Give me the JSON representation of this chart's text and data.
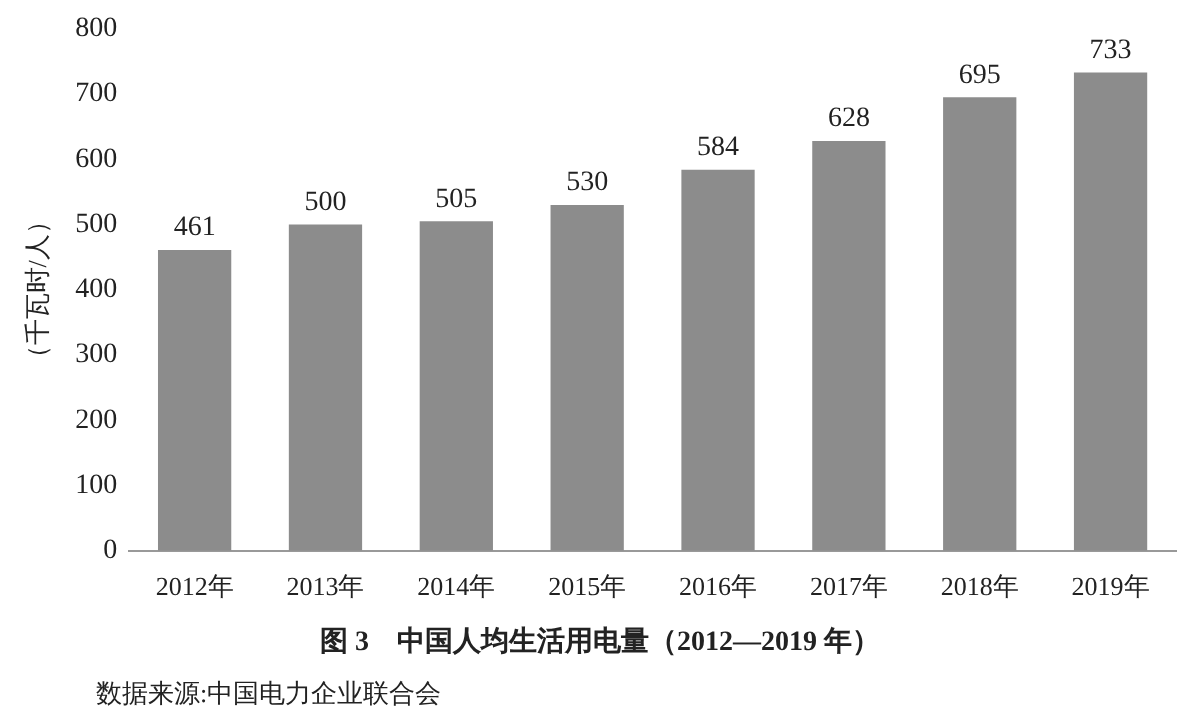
{
  "chart_data": {
    "type": "bar",
    "title": "图 3　中国人均生活用电量（2012—2019 年）",
    "ylabel": "（千瓦时/人）",
    "categories": [
      "2012年",
      "2013年",
      "2014年",
      "2015年",
      "2016年",
      "2017年",
      "2018年",
      "2019年"
    ],
    "values": [
      461,
      500,
      505,
      530,
      584,
      628,
      695,
      733
    ],
    "color": "#8c8c8c",
    "ylim": [
      0,
      800
    ],
    "yticks": [
      0,
      100,
      200,
      300,
      400,
      500,
      600,
      700,
      800
    ],
    "grid": false,
    "data_labels": true,
    "legend": false,
    "annotations": [
      "数据来源:中国电力企业联合会"
    ]
  }
}
